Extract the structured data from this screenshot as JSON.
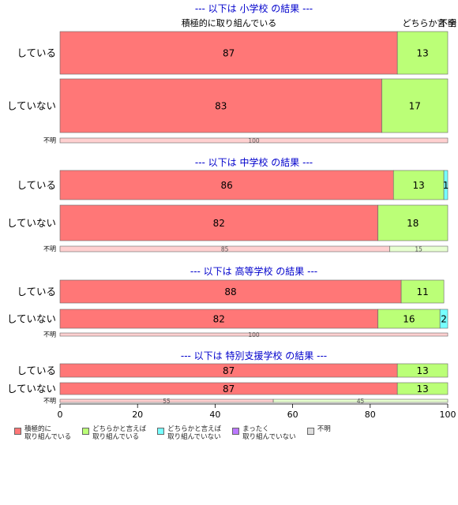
{
  "chart_data": {
    "type": "bar",
    "orientation": "horizontal",
    "stacked": true,
    "xlim": [
      0,
      100
    ],
    "xticks": [
      "0",
      "20",
      "40",
      "60",
      "80",
      "100"
    ],
    "series": [
      {
        "name": "積極的に\n取り組んでいる",
        "color": "#ff7777"
      },
      {
        "name": "どちらかと言えば\n取り組んでいる",
        "color": "#bbff77"
      },
      {
        "name": "どちらかと言えば\n取り組んでいない",
        "color": "#77ffff"
      },
      {
        "name": "まったく\n取り組んでいない",
        "color": "#bb77ff"
      },
      {
        "name": "不明",
        "color": "#dddddd"
      }
    ],
    "top_labels": [
      "積極的に取り組んでいる",
      "どちらか言",
      "不明",
      "全く"
    ],
    "panels": [
      {
        "title": "--- 以下は 小学校 の結果 ---",
        "rows": [
          {
            "label": "している",
            "values": [
              87,
              13,
              0,
              0,
              0
            ],
            "texts": [
              "87",
              "13",
              "",
              "",
              ""
            ]
          },
          {
            "label": "していない",
            "values": [
              83,
              17,
              0,
              0,
              0
            ],
            "texts": [
              "83",
              "17",
              "",
              "",
              ""
            ]
          },
          {
            "label": "不明",
            "values": [
              100,
              0,
              0,
              0,
              0
            ],
            "texts": [
              "100",
              "",
              "",
              "",
              ""
            ]
          }
        ]
      },
      {
        "title": "--- 以下は 中学校 の結果 ---",
        "rows": [
          {
            "label": "している",
            "values": [
              86,
              13,
              1,
              0,
              0
            ],
            "texts": [
              "86",
              "13",
              "1",
              "",
              ""
            ]
          },
          {
            "label": "していない",
            "values": [
              82,
              18,
              0,
              0,
              0
            ],
            "texts": [
              "82",
              "18",
              "",
              "",
              ""
            ]
          },
          {
            "label": "不明",
            "values": [
              85,
              15,
              0,
              0,
              0
            ],
            "texts": [
              "85",
              "15",
              "",
              "",
              ""
            ]
          }
        ]
      },
      {
        "title": "--- 以下は 高等学校 の結果 ---",
        "rows": [
          {
            "label": "している",
            "values": [
              88,
              11,
              0,
              0,
              0
            ],
            "texts": [
              "88",
              "11",
              "",
              "",
              ""
            ]
          },
          {
            "label": "していない",
            "values": [
              82,
              16,
              2,
              0,
              0
            ],
            "texts": [
              "82",
              "16",
              "2",
              "",
              ""
            ]
          },
          {
            "label": "不明",
            "values": [
              100,
              0,
              0,
              0,
              0
            ],
            "texts": [
              "100",
              "",
              "",
              "",
              ""
            ]
          }
        ]
      },
      {
        "title": "--- 以下は 特別支援学校 の結果 ---",
        "rows": [
          {
            "label": "している",
            "values": [
              87,
              13,
              0,
              0,
              0
            ],
            "texts": [
              "87",
              "13",
              "",
              "",
              ""
            ]
          },
          {
            "label": "していない",
            "values": [
              87,
              13,
              0,
              0,
              0
            ],
            "texts": [
              "87",
              "13",
              "",
              "",
              ""
            ]
          },
          {
            "label": "不明",
            "values": [
              55,
              45,
              0,
              0,
              0
            ],
            "texts": [
              "55",
              "45",
              "",
              "",
              ""
            ]
          }
        ]
      }
    ],
    "title_color": "#0000cc",
    "legend_position": "bottom",
    "grid": false
  }
}
